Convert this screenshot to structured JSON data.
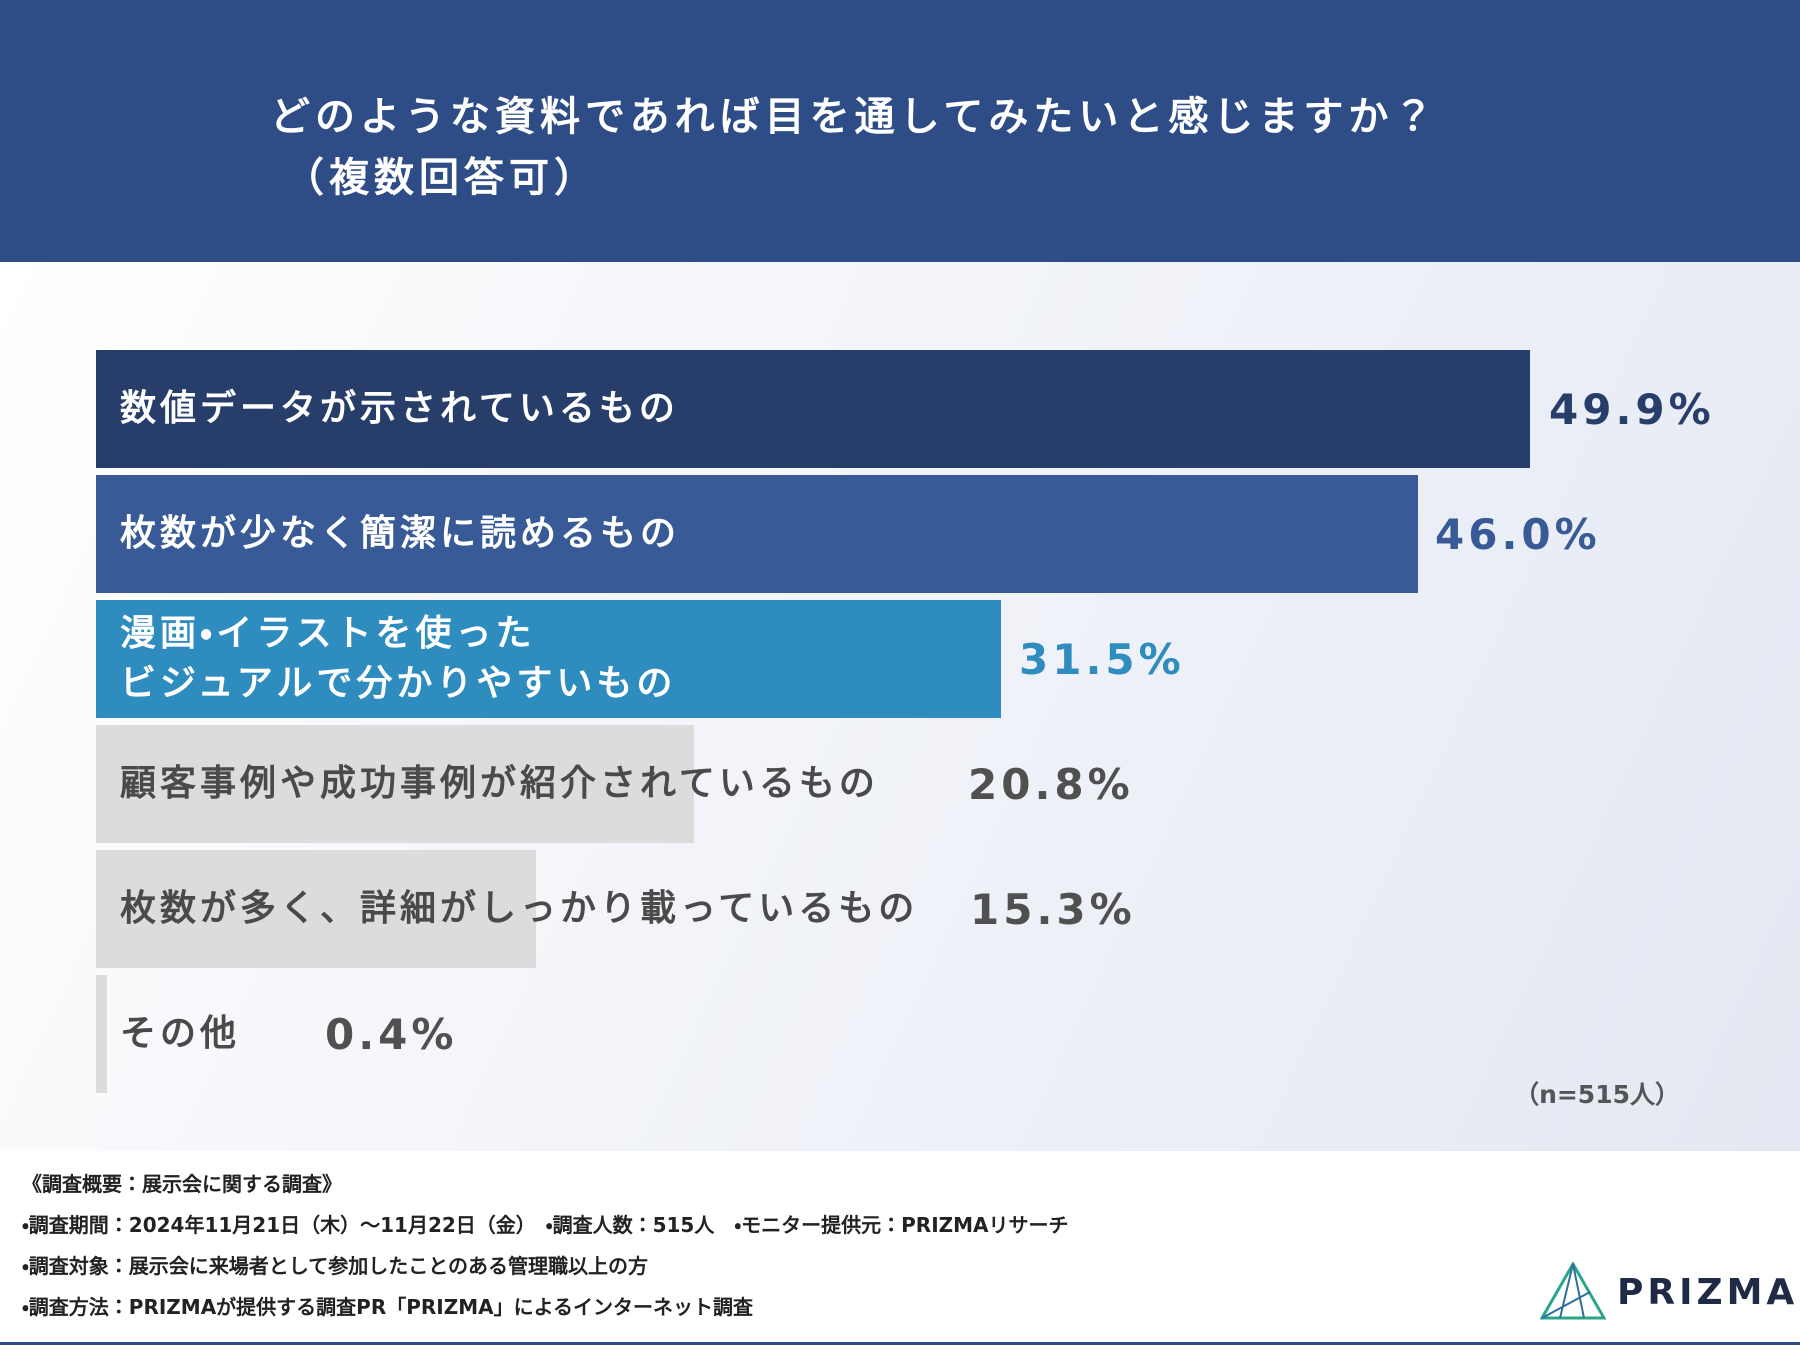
{
  "chart_data": {
    "type": "bar",
    "orientation": "horizontal",
    "title": "どのような資料であれば目を通してみたいと感じますか？",
    "subtitle": "（複数回答可）",
    "categories": [
      "数値データが示されているもの",
      "枚数が少なく簡潔に読めるもの",
      "漫画・イラストを使った\nビジュアルで分かりやすいもの",
      "顧客事例や成功事例が紹介されているもの",
      "枚数が多く、詳細がしっかり載っているもの",
      "その他"
    ],
    "values": [
      49.9,
      46.0,
      31.5,
      20.8,
      15.3,
      0.4
    ],
    "value_labels": [
      "49.9%",
      "46.0%",
      "31.5%",
      "20.8%",
      "15.3%",
      "0.4%"
    ],
    "colors": [
      "#273e6a",
      "#385a96",
      "#2f8cbf",
      "#dcdcdc",
      "#dcdcdc",
      "#dcdcdc"
    ],
    "text_colors": [
      "#ffffff",
      "#ffffff",
      "#ffffff",
      "#4a4a4a",
      "#4a4a4a",
      "#4a4a4a"
    ],
    "value_label_colors": [
      "#273e6a",
      "#385a96",
      "#2f8cbf",
      "#505050",
      "#505050",
      "#505050"
    ],
    "note": "（n=515人）"
  },
  "footer": {
    "lines": [
      "《調査概要：展示会に関する調査》",
      "・調査期間：2024年11月21日（木）〜11月22日（金）　・調査人数：515人　・モニター提供元：PRIZMAリサーチ",
      "・調査対象：展示会に来場者として参加したことのある管理職以上の方",
      "・調査方法：PRIZMAが提供する調査PR「PRIZMA」によるインターネット調査"
    ],
    "logo": "PRIZMA"
  }
}
